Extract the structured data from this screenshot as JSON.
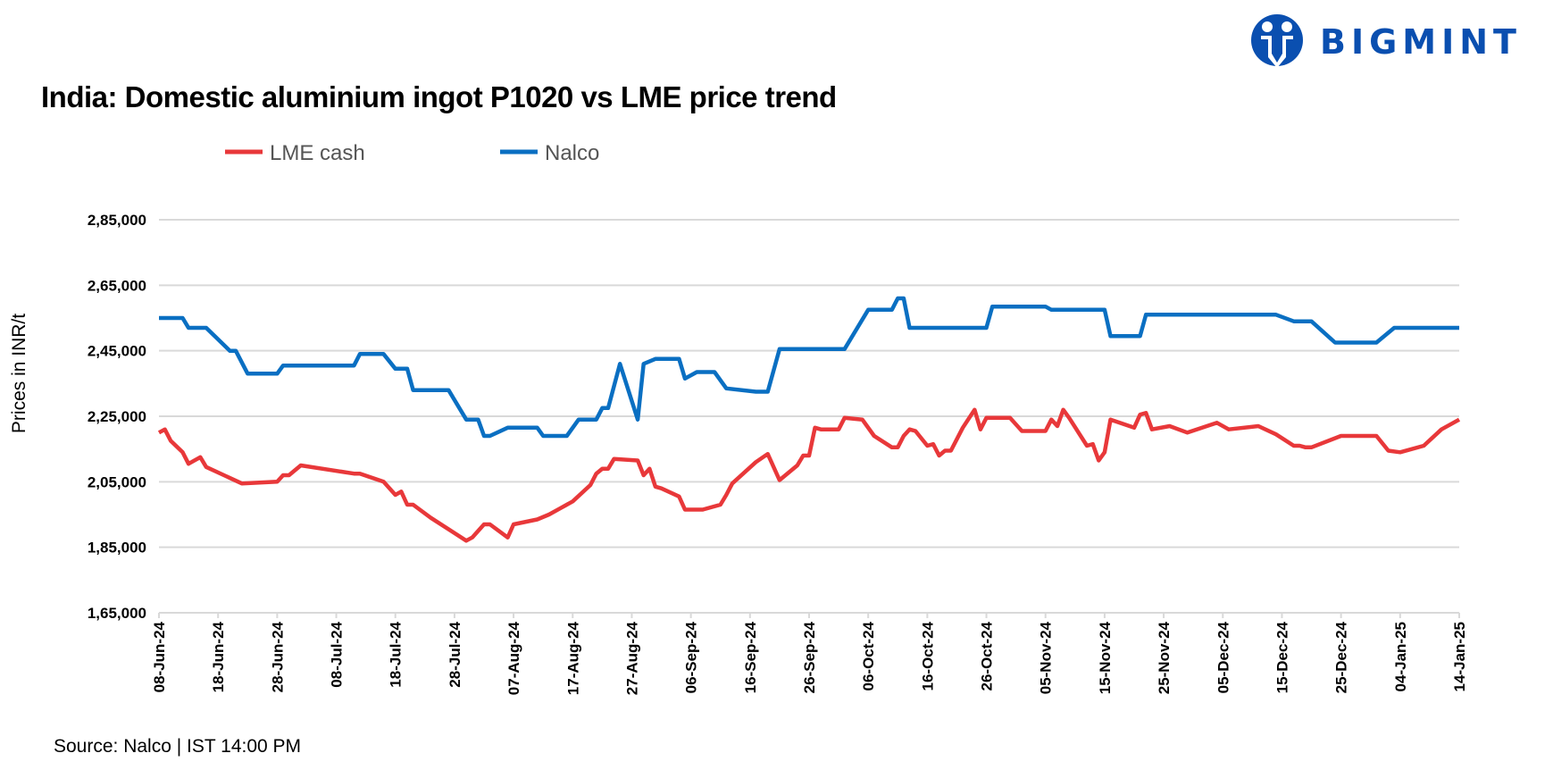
{
  "title": "India: Domestic aluminium ingot P1020 vs LME price trend",
  "source": "Source: Nalco | IST 14:00 PM",
  "logo": {
    "text": "BIGMINT",
    "color": "#0a4fb0"
  },
  "chart_data": {
    "type": "line",
    "title": "India: Domestic aluminium ingot P1020 vs LME price trend",
    "ylabel": "Prices in INR/t",
    "xlabel": "",
    "ylim": [
      165000,
      285000
    ],
    "xlim": [
      "2024-06-08",
      "2025-01-14"
    ],
    "grid": true,
    "legend_placement": "top",
    "y_ticks": [
      165000,
      185000,
      205000,
      225000,
      245000,
      265000,
      285000
    ],
    "y_tick_labels": [
      "1,65,000",
      "1,85,000",
      "2,05,000",
      "2,25,000",
      "2,45,000",
      "2,65,000",
      "2,85,000"
    ],
    "x_tick_labels": [
      "08-Jun-24",
      "18-Jun-24",
      "28-Jun-24",
      "08-Jul-24",
      "18-Jul-24",
      "28-Jul-24",
      "07-Aug-24",
      "17-Aug-24",
      "27-Aug-24",
      "06-Sep-24",
      "16-Sep-24",
      "26-Sep-24",
      "06-Oct-24",
      "16-Oct-24",
      "26-Oct-24",
      "05-Nov-24",
      "15-Nov-24",
      "25-Nov-24",
      "05-Dec-24",
      "15-Dec-24",
      "25-Dec-24",
      "04-Jan-25",
      "14-Jan-25"
    ],
    "series": [
      {
        "name": "LME cash",
        "color": "#e8383a",
        "points": [
          [
            "2024-06-08",
            220000
          ],
          [
            "2024-06-09",
            221000
          ],
          [
            "2024-06-10",
            217500
          ],
          [
            "2024-06-12",
            214000
          ],
          [
            "2024-06-13",
            210500
          ],
          [
            "2024-06-15",
            212500
          ],
          [
            "2024-06-16",
            209500
          ],
          [
            "2024-06-19",
            207000
          ],
          [
            "2024-06-22",
            204500
          ],
          [
            "2024-06-28",
            205000
          ],
          [
            "2024-06-29",
            207000
          ],
          [
            "2024-06-30",
            207000
          ],
          [
            "2024-07-02",
            210000
          ],
          [
            "2024-07-11",
            207500
          ],
          [
            "2024-07-12",
            207500
          ],
          [
            "2024-07-16",
            205000
          ],
          [
            "2024-07-18",
            201000
          ],
          [
            "2024-07-19",
            202000
          ],
          [
            "2024-07-20",
            198000
          ],
          [
            "2024-07-21",
            198000
          ],
          [
            "2024-07-24",
            194000
          ],
          [
            "2024-07-30",
            187000
          ],
          [
            "2024-07-31",
            188000
          ],
          [
            "2024-08-02",
            192000
          ],
          [
            "2024-08-03",
            192000
          ],
          [
            "2024-08-06",
            188000
          ],
          [
            "2024-08-07",
            192000
          ],
          [
            "2024-08-11",
            193500
          ],
          [
            "2024-08-13",
            195000
          ],
          [
            "2024-08-15",
            197000
          ],
          [
            "2024-08-17",
            199000
          ],
          [
            "2024-08-20",
            204000
          ],
          [
            "2024-08-21",
            207500
          ],
          [
            "2024-08-22",
            209000
          ],
          [
            "2024-08-23",
            209000
          ],
          [
            "2024-08-24",
            212000
          ],
          [
            "2024-08-28",
            211500
          ],
          [
            "2024-08-29",
            207000
          ],
          [
            "2024-08-30",
            209000
          ],
          [
            "2024-08-31",
            203500
          ],
          [
            "2024-09-01",
            203000
          ],
          [
            "2024-09-04",
            200500
          ],
          [
            "2024-09-05",
            196500
          ],
          [
            "2024-09-08",
            196500
          ],
          [
            "2024-09-11",
            198000
          ],
          [
            "2024-09-12",
            201000
          ],
          [
            "2024-09-13",
            204500
          ],
          [
            "2024-09-17",
            211000
          ],
          [
            "2024-09-19",
            213500
          ],
          [
            "2024-09-21",
            205500
          ],
          [
            "2024-09-24",
            210000
          ],
          [
            "2024-09-25",
            213000
          ],
          [
            "2024-09-26",
            213000
          ],
          [
            "2024-09-27",
            221500
          ],
          [
            "2024-09-28",
            221000
          ],
          [
            "2024-10-01",
            221000
          ],
          [
            "2024-10-02",
            224500
          ],
          [
            "2024-10-05",
            224000
          ],
          [
            "2024-10-07",
            219000
          ],
          [
            "2024-10-10",
            215500
          ],
          [
            "2024-10-11",
            215500
          ],
          [
            "2024-10-12",
            219000
          ],
          [
            "2024-10-13",
            221000
          ],
          [
            "2024-10-14",
            220500
          ],
          [
            "2024-10-16",
            216000
          ],
          [
            "2024-10-17",
            216500
          ],
          [
            "2024-10-18",
            213000
          ],
          [
            "2024-10-19",
            214500
          ],
          [
            "2024-10-20",
            214500
          ],
          [
            "2024-10-22",
            221500
          ],
          [
            "2024-10-24",
            227000
          ],
          [
            "2024-10-25",
            221000
          ],
          [
            "2024-10-26",
            224500
          ],
          [
            "2024-10-30",
            224500
          ],
          [
            "2024-11-01",
            220500
          ],
          [
            "2024-11-05",
            220500
          ],
          [
            "2024-11-06",
            224000
          ],
          [
            "2024-11-07",
            222000
          ],
          [
            "2024-11-08",
            227000
          ],
          [
            "2024-11-09",
            224500
          ],
          [
            "2024-11-12",
            216000
          ],
          [
            "2024-11-13",
            216500
          ],
          [
            "2024-11-14",
            211500
          ],
          [
            "2024-11-15",
            214000
          ],
          [
            "2024-11-16",
            224000
          ],
          [
            "2024-11-20",
            221500
          ],
          [
            "2024-11-21",
            225500
          ],
          [
            "2024-11-22",
            226000
          ],
          [
            "2024-11-23",
            221000
          ],
          [
            "2024-11-26",
            222000
          ],
          [
            "2024-11-29",
            220000
          ],
          [
            "2024-12-04",
            223000
          ],
          [
            "2024-12-06",
            221000
          ],
          [
            "2024-12-11",
            222000
          ],
          [
            "2024-12-14",
            219500
          ],
          [
            "2024-12-17",
            216000
          ],
          [
            "2024-12-18",
            216000
          ],
          [
            "2024-12-19",
            215500
          ],
          [
            "2024-12-20",
            215500
          ],
          [
            "2024-12-25",
            219000
          ],
          [
            "2024-12-27",
            219000
          ],
          [
            "2024-12-31",
            219000
          ],
          [
            "2025-01-02",
            214500
          ],
          [
            "2025-01-04",
            214000
          ],
          [
            "2025-01-08",
            216000
          ],
          [
            "2025-01-11",
            221000
          ],
          [
            "2025-01-14",
            224000
          ]
        ]
      },
      {
        "name": "Nalco",
        "color": "#0a6fc2",
        "points": [
          [
            "2024-06-08",
            255000
          ],
          [
            "2024-06-12",
            255000
          ],
          [
            "2024-06-13",
            252000
          ],
          [
            "2024-06-16",
            252000
          ],
          [
            "2024-06-20",
            245000
          ],
          [
            "2024-06-21",
            245000
          ],
          [
            "2024-06-23",
            238000
          ],
          [
            "2024-06-28",
            238000
          ],
          [
            "2024-06-29",
            240500
          ],
          [
            "2024-07-11",
            240500
          ],
          [
            "2024-07-12",
            244000
          ],
          [
            "2024-07-16",
            244000
          ],
          [
            "2024-07-18",
            239500
          ],
          [
            "2024-07-20",
            239500
          ],
          [
            "2024-07-21",
            233000
          ],
          [
            "2024-07-27",
            233000
          ],
          [
            "2024-07-30",
            224000
          ],
          [
            "2024-08-01",
            224000
          ],
          [
            "2024-08-02",
            219000
          ],
          [
            "2024-08-03",
            219000
          ],
          [
            "2024-08-06",
            221500
          ],
          [
            "2024-08-11",
            221500
          ],
          [
            "2024-08-12",
            219000
          ],
          [
            "2024-08-16",
            219000
          ],
          [
            "2024-08-18",
            224000
          ],
          [
            "2024-08-21",
            224000
          ],
          [
            "2024-08-22",
            227500
          ],
          [
            "2024-08-23",
            227500
          ],
          [
            "2024-08-25",
            241000
          ],
          [
            "2024-08-28",
            224000
          ],
          [
            "2024-08-29",
            241000
          ],
          [
            "2024-08-31",
            242500
          ],
          [
            "2024-09-04",
            242500
          ],
          [
            "2024-09-05",
            236500
          ],
          [
            "2024-09-07",
            238500
          ],
          [
            "2024-09-10",
            238500
          ],
          [
            "2024-09-12",
            233500
          ],
          [
            "2024-09-17",
            232500
          ],
          [
            "2024-09-19",
            232500
          ],
          [
            "2024-09-21",
            245500
          ],
          [
            "2024-10-02",
            245500
          ],
          [
            "2024-10-06",
            257500
          ],
          [
            "2024-10-10",
            257500
          ],
          [
            "2024-10-11",
            261000
          ],
          [
            "2024-10-12",
            261000
          ],
          [
            "2024-10-13",
            252000
          ],
          [
            "2024-10-26",
            252000
          ],
          [
            "2024-10-27",
            258500
          ],
          [
            "2024-11-05",
            258500
          ],
          [
            "2024-11-06",
            257500
          ],
          [
            "2024-11-15",
            257500
          ],
          [
            "2024-11-16",
            249500
          ],
          [
            "2024-11-21",
            249500
          ],
          [
            "2024-11-22",
            256000
          ],
          [
            "2024-12-14",
            256000
          ],
          [
            "2024-12-17",
            254000
          ],
          [
            "2024-12-20",
            254000
          ],
          [
            "2024-12-24",
            247500
          ],
          [
            "2024-12-31",
            247500
          ],
          [
            "2025-01-03",
            252000
          ],
          [
            "2025-01-14",
            252000
          ]
        ]
      }
    ]
  }
}
